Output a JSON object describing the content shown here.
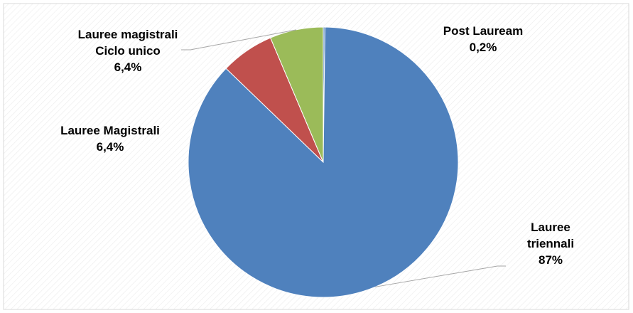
{
  "chart_data": {
    "type": "pie",
    "title": "",
    "slices": [
      {
        "name": "Post Lauream",
        "value": 0.2,
        "label_lines": [
          "Post Lauream"
        ],
        "value_label": "0,2%",
        "color": "#4f81bd"
      },
      {
        "name": "Lauree triennali",
        "value": 87,
        "label_lines": [
          "Lauree",
          "triennali"
        ],
        "value_label": "87%",
        "color": "#4f81bd"
      },
      {
        "name": "Lauree Magistrali",
        "value": 6.4,
        "label_lines": [
          "Lauree Magistrali"
        ],
        "value_label": "6,4%",
        "color": "#c0504d"
      },
      {
        "name": "Lauree magistrali Ciclo unico",
        "value": 6.4,
        "label_lines": [
          "Lauree magistrali",
          "Ciclo unico"
        ],
        "value_label": "6,4%",
        "color": "#9bbb59"
      }
    ],
    "legend": "none",
    "background": "#ffffff",
    "border_color": "#d9d9d9",
    "leader_line_color": "#a6a6a6"
  }
}
